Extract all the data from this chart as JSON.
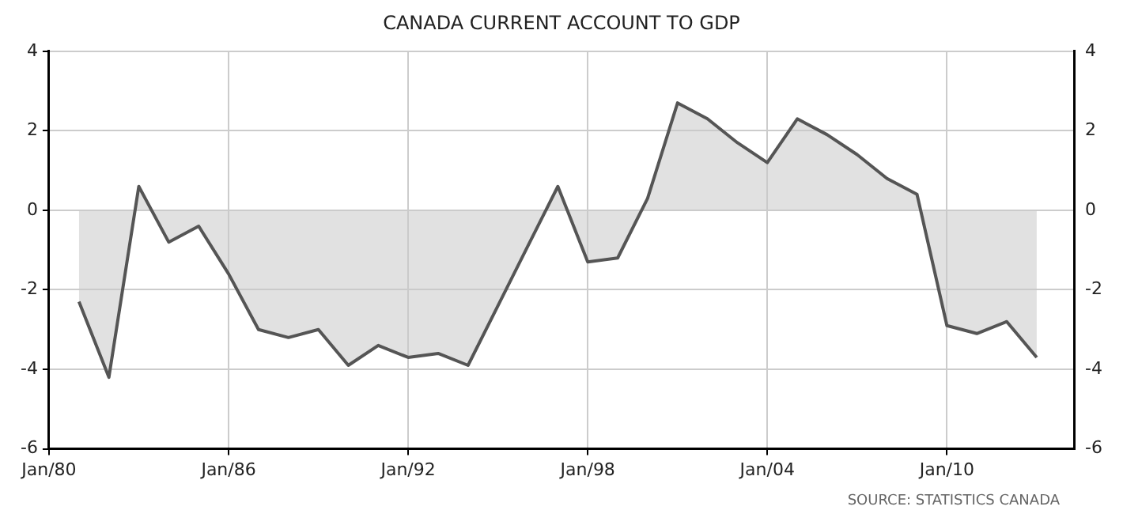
{
  "chart_data": {
    "type": "area",
    "title": "CANADA CURRENT ACCOUNT TO GDP",
    "x": [
      "1981-01",
      "1982-01",
      "1983-01",
      "1984-01",
      "1985-01",
      "1986-01",
      "1987-01",
      "1988-01",
      "1989-01",
      "1990-01",
      "1991-01",
      "1992-01",
      "1993-01",
      "1994-01",
      "1995-01",
      "1996-01",
      "1997-01",
      "1998-01",
      "1999-01",
      "2000-01",
      "2001-01",
      "2002-01",
      "2003-01",
      "2004-01",
      "2005-01",
      "2006-01",
      "2007-01",
      "2008-01",
      "2009-01",
      "2010-01",
      "2011-01",
      "2012-01",
      "2013-01"
    ],
    "series": [
      {
        "color": "#555555",
        "values": [
          -2.3,
          -4.2,
          0.6,
          -0.8,
          -0.4,
          -1.6,
          -3.0,
          -3.2,
          -3.0,
          -3.9,
          -3.4,
          -3.7,
          -3.6,
          -3.9,
          -2.4,
          -0.9,
          0.6,
          -1.3,
          -1.2,
          0.3,
          2.7,
          2.3,
          1.7,
          1.2,
          2.3,
          1.9,
          1.4,
          0.8,
          0.4,
          -2.9,
          -3.1,
          -2.8,
          -3.7
        ]
      }
    ],
    "xlim": [
      "1980-01",
      "2014-04"
    ],
    "xticks": [
      {
        "value": "1980-01",
        "label": "Jan/80"
      },
      {
        "value": "1986-01",
        "label": "Jan/86"
      },
      {
        "value": "1992-01",
        "label": "Jan/92"
      },
      {
        "value": "1998-01",
        "label": "Jan/98"
      },
      {
        "value": "2004-01",
        "label": "Jan/04"
      },
      {
        "value": "2010-01",
        "label": "Jan/10"
      }
    ],
    "ylim": [
      -6,
      4
    ],
    "yticks": [
      -6,
      -4,
      -2,
      0,
      2,
      4
    ],
    "y2lim": [
      -6,
      4
    ],
    "y2ticks": [
      -6,
      -4,
      -2,
      0,
      2,
      4
    ],
    "grid": true,
    "marker": "none",
    "line_style": "solid",
    "legend": false,
    "annotations": [
      "SOURCE: STATISTICS CANADA"
    ]
  }
}
